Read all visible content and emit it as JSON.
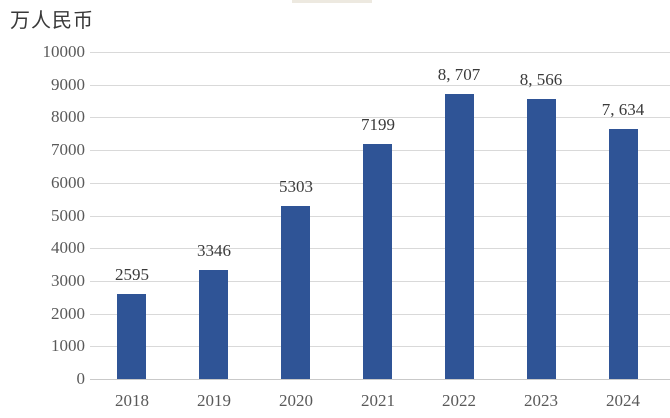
{
  "chart_data": {
    "type": "bar",
    "unit_label": "万人民币",
    "categories": [
      "2018",
      "2019",
      "2020",
      "2021",
      "2022",
      "2023",
      "2024"
    ],
    "values": [
      2595,
      3346,
      5303,
      7199,
      8707,
      8566,
      7634
    ],
    "value_labels": [
      "2595",
      "3346",
      "5303",
      "7199",
      "8, 707",
      "8, 566",
      "7, 634"
    ],
    "ylim": [
      0,
      10000
    ],
    "ytick_interval": 1000,
    "ytick_labels": [
      "0",
      "1000",
      "2000",
      "3000",
      "4000",
      "5000",
      "6000",
      "7000",
      "8000",
      "9000",
      "10000"
    ],
    "grid": "horizontal",
    "legend": "none",
    "colors": {
      "bar": "#2F5496",
      "gridline": "#d9d9d9",
      "axis_text": "#595959",
      "value_text": "#3a3a3a",
      "unit_text": "#383838"
    }
  }
}
